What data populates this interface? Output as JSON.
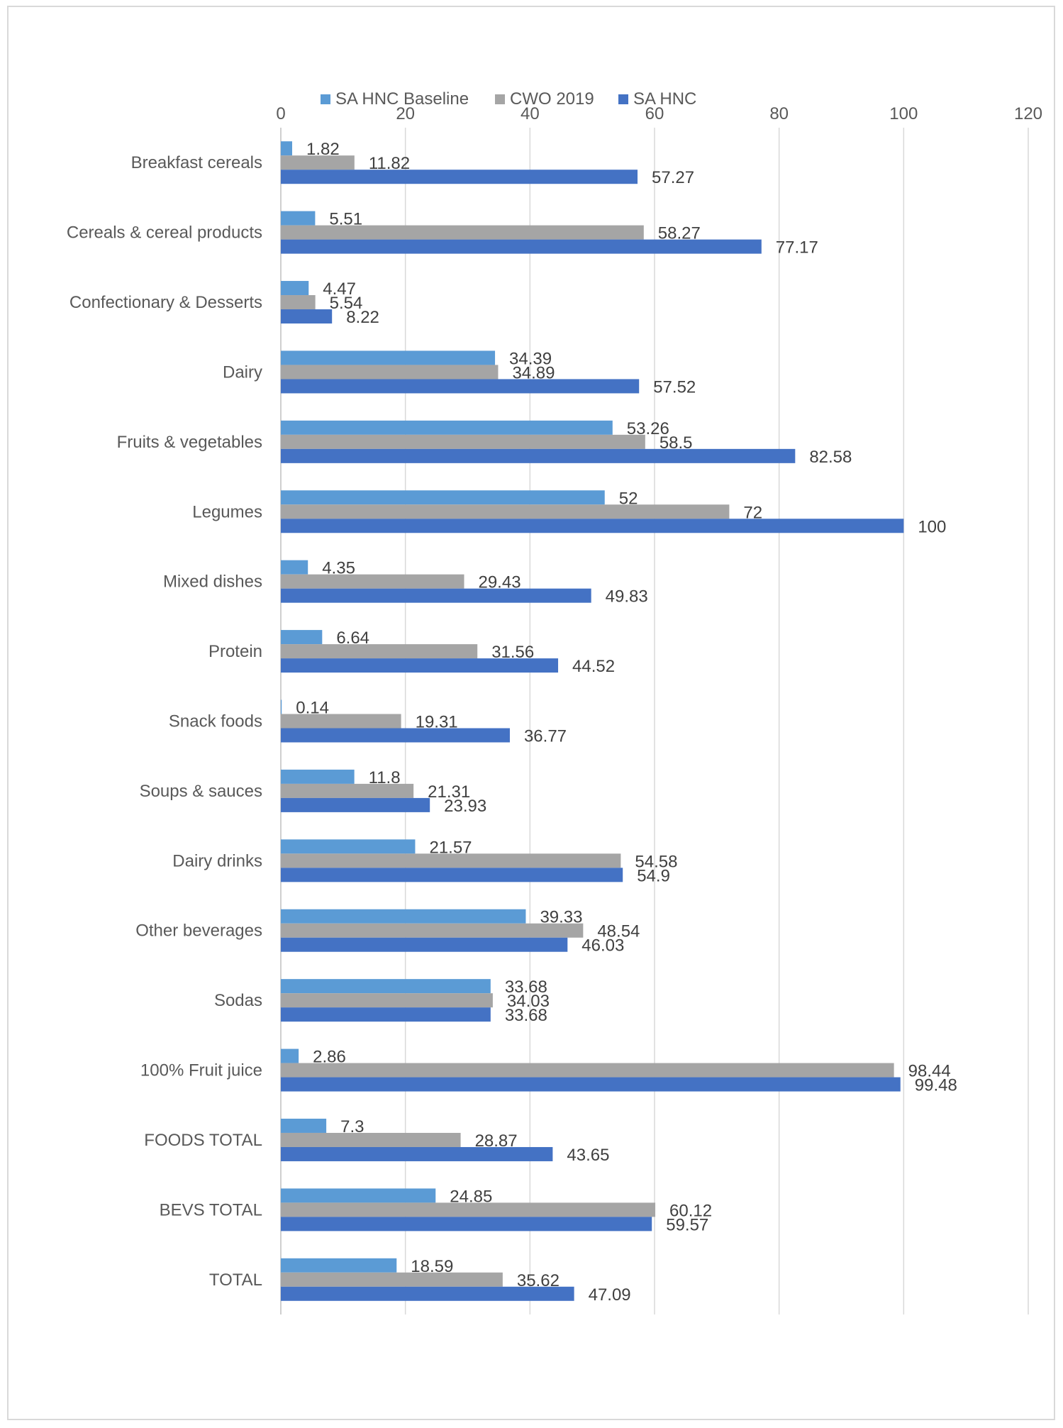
{
  "chart_data": {
    "type": "bar",
    "orientation": "horizontal",
    "title": "",
    "xlabel": "",
    "ylabel": "",
    "xlim": [
      0,
      120
    ],
    "x_ticks": [
      0,
      20,
      40,
      60,
      80,
      100,
      120
    ],
    "grid": true,
    "legend_position": "top",
    "categories": [
      "Breakfast cereals",
      "Cereals & cereal products",
      "Confectionary & Desserts",
      "Dairy",
      "Fruits & vegetables",
      "Legumes",
      "Mixed dishes",
      "Protein",
      "Snack foods",
      "Soups & sauces",
      "Dairy drinks",
      "Other beverages",
      "Sodas",
      "100% Fruit juice",
      "FOODS TOTAL",
      "BEVS TOTAL",
      "TOTAL"
    ],
    "series": [
      {
        "name": "SA HNC Baseline",
        "color": "#5b9bd5",
        "values": [
          1.82,
          5.51,
          4.47,
          34.39,
          53.26,
          52,
          4.35,
          6.64,
          0.14,
          11.8,
          21.57,
          39.33,
          33.68,
          2.86,
          7.3,
          24.85,
          18.59
        ]
      },
      {
        "name": "CWO 2019",
        "color": "#a5a5a5",
        "values": [
          11.82,
          58.27,
          5.54,
          34.89,
          58.5,
          72,
          29.43,
          31.56,
          19.31,
          21.31,
          54.58,
          48.54,
          34.03,
          98.44,
          28.87,
          60.12,
          35.62
        ]
      },
      {
        "name": "SA HNC",
        "color": "#4472c4",
        "values": [
          57.27,
          77.17,
          8.22,
          57.52,
          82.58,
          100,
          49.83,
          44.52,
          36.77,
          23.93,
          54.9,
          46.03,
          33.68,
          99.48,
          43.65,
          59.57,
          47.09
        ]
      }
    ]
  }
}
